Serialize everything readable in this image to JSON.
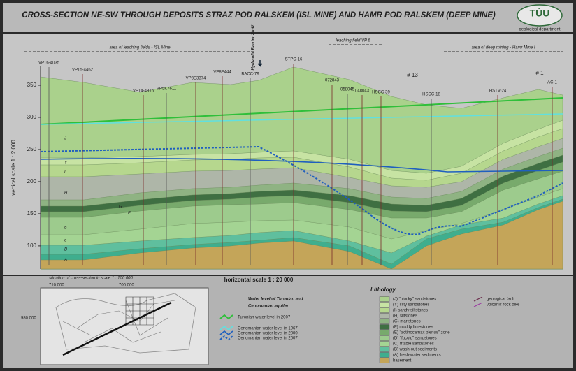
{
  "header": {
    "title": "CROSS-SECTION NE-SW THROUGH DEPOSITS STRAZ POD RALSKEM (ISL MINE) AND HAMR POD RALSKEM (DEEP MINE)",
    "logo": "TÚU",
    "department": "geological department"
  },
  "zones": [
    "area of leaching fields  -  ISL Mine",
    "Hydraulic Barrier Stráž",
    "leaching field VP 6",
    "area of deep mining - Hamr Mine I"
  ],
  "wells": [
    "VP16-4035",
    "VP15-4462",
    "VP14-4315",
    "VP5K7611",
    "VP3E3374",
    "VP8E444",
    "BACC-79",
    "STPC-16",
    "072843",
    "058045",
    "048043",
    "HSCC-39",
    "HSCC-18",
    "HSTV-24",
    "AC-1"
  ],
  "shafts": [
    "# 13",
    "# 1"
  ],
  "vertical_axis": {
    "label": "vertical scale  1 : 2 000",
    "ylim": [
      64,
      380
    ],
    "yticks": [
      350,
      300,
      250,
      200,
      150,
      100
    ]
  },
  "horizontal_scale": "horizontal scale  1 : 20 000",
  "layer_labels": [
    "J",
    "Y",
    "I",
    "H",
    "G",
    "F",
    "b",
    "c",
    "B",
    "A"
  ],
  "inset": {
    "title": "situation of cross-section in scale  1 : 100 000",
    "coords": [
      "710 000",
      "700 000",
      "980 000"
    ]
  },
  "water": {
    "title": [
      "Water level of Turonian and",
      "Cenomanian aquifer"
    ],
    "items": [
      "Turonian water level in 2007",
      "Cenomanian water level in 1967",
      "Cenomanian water level in 2000",
      "Cenomanian water level in 2007"
    ]
  },
  "lithology": {
    "title": "Lithology",
    "items": [
      "(J)  \"blocky\" sandstones",
      "(Y)  silty sandstones",
      "(I)   sandy siltstones",
      "(H)  siltstones",
      "(G)  marlstones",
      "(F)  muddy limestones",
      "(E)  \"actinocamax plenus\" zone",
      "(D)  \"fucoid\" sandstones",
      "(C)  friable sandstones",
      "(B)  wash-out sediments",
      "(A)  fresh-water sediments",
      "basement"
    ]
  },
  "structures": [
    "geological fault",
    "volcanic rock dike"
  ]
}
